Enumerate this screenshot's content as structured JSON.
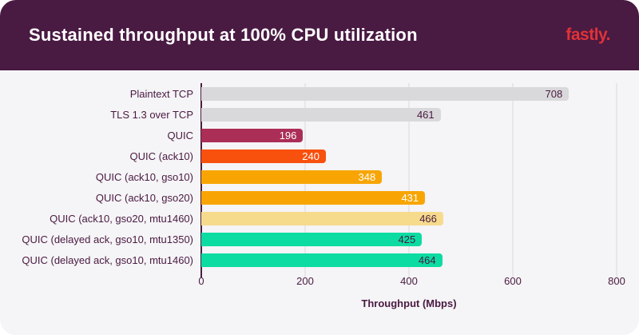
{
  "header": {
    "title": "Sustained throughput at 100% CPU utilization",
    "logo_text": "fastly.",
    "background_color": "#491a42",
    "logo_color": "#e13238"
  },
  "chart_data": {
    "type": "bar",
    "orientation": "horizontal",
    "title": "Sustained throughput at 100% CPU utilization",
    "xlabel": "Throughput (Mbps)",
    "xlim": [
      0,
      800
    ],
    "xticks": [
      "0",
      "200",
      "400",
      "600",
      "800"
    ],
    "grid": true,
    "legend": "none",
    "categories": [
      "Plaintext TCP",
      "TLS 1.3 over TCP",
      "QUIC",
      "QUIC (ack10)",
      "QUIC (ack10, gso10)",
      "QUIC (ack10, gso20)",
      "QUIC (ack10, gso20, mtu1460)",
      "QUIC (delayed ack, gso10, mtu1350)",
      "QUIC (delayed ack, gso10, mtu1460)"
    ],
    "values": [
      708,
      461,
      196,
      240,
      348,
      431,
      466,
      425,
      464
    ],
    "bar_colors": [
      "#d9d8da",
      "#d9d8da",
      "#ab2e57",
      "#f8500d",
      "#f8a504",
      "#f8a504",
      "#f6db8d",
      "#0cdca2",
      "#0cdca2"
    ],
    "value_text_colors": [
      "#491a42",
      "#491a42",
      "#ffffff",
      "#ffffff",
      "#ffffff",
      "#ffffff",
      "#491a42",
      "#491a42",
      "#491a42"
    ]
  },
  "colors": {
    "body_background": "#f5f4f6",
    "text": "#491a42",
    "gridline": "#ddd9dc",
    "axis_line": "#4a2040"
  }
}
